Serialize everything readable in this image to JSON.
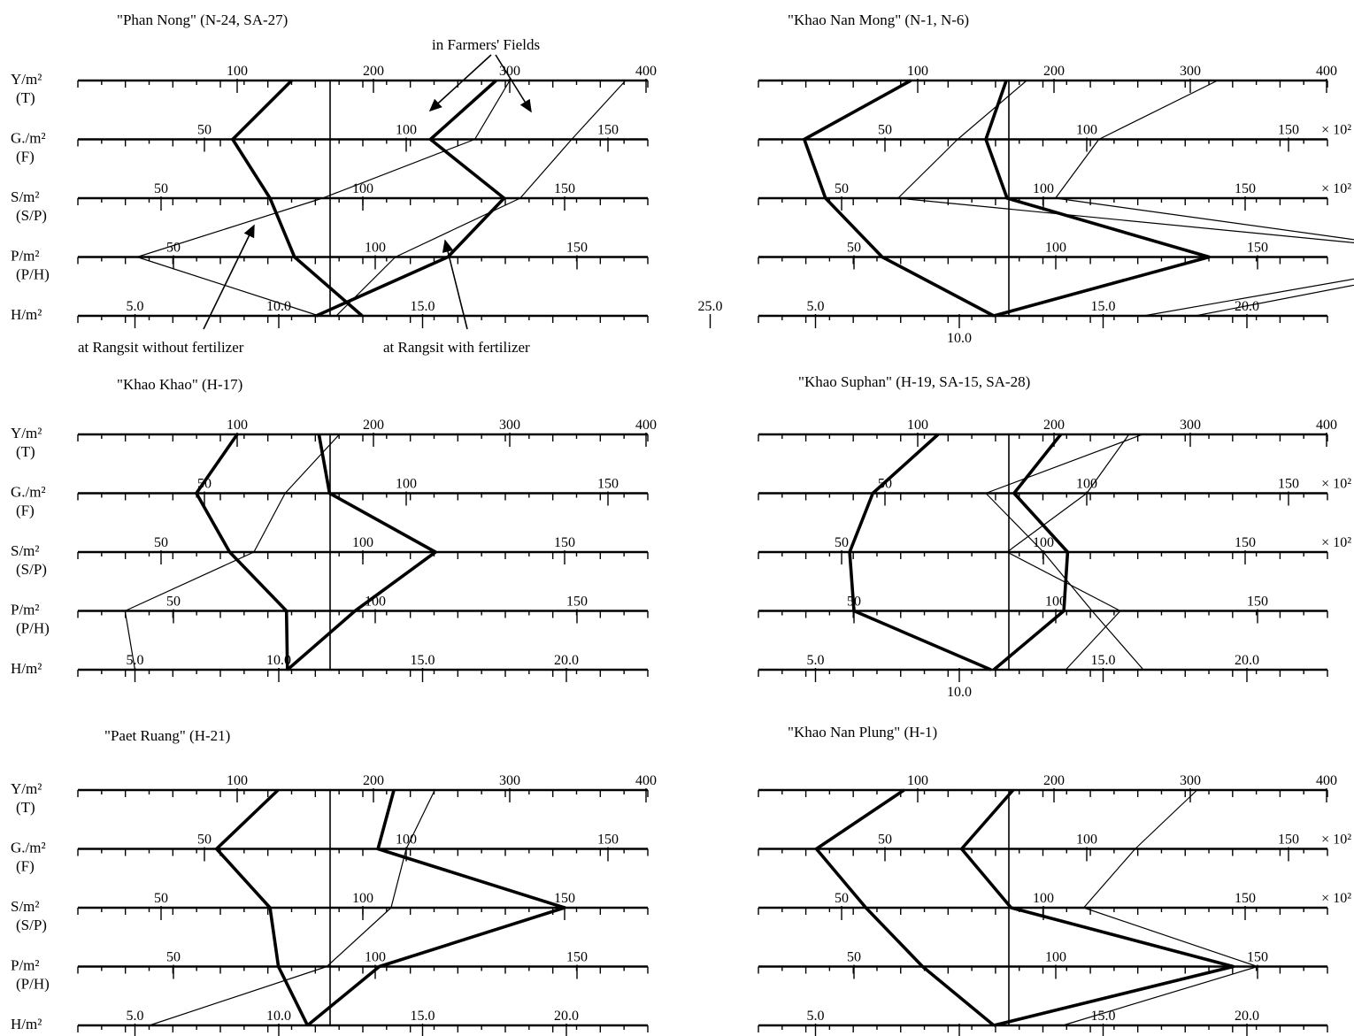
{
  "row_labels": [
    {
      "main": "Y/m²",
      "sub": "(T)"
    },
    {
      "main": "G./m²",
      "sub": "(F)"
    },
    {
      "main": "S/m²",
      "sub": "(S/P)"
    },
    {
      "main": "P/m²",
      "sub": "(P/H)"
    },
    {
      "main": "H/m²",
      "sub": ""
    }
  ],
  "multiplier_labels": {
    "G": "× 10²",
    "S": "× 10²"
  },
  "annotations": {
    "farmers": "in Farmers' Fields",
    "without": "at Rangsit without  fertilizer",
    "with": "at Rangsit with fertilizer"
  },
  "chart_data": [
    {
      "type": "line",
      "title": "\"Phan Nong\" (N-24, SA-27)",
      "scales": {
        "Y": {
          "ticks": [
            100,
            200,
            300,
            400
          ]
        },
        "G": {
          "ticks": [
            50,
            100,
            150
          ]
        },
        "S": {
          "ticks": [
            50,
            100,
            150
          ]
        },
        "P": {
          "ticks": [
            50,
            100,
            150
          ]
        },
        "H": {
          "ticks": [
            "5.0",
            "10.0",
            "15.0",
            "25.0"
          ]
        }
      },
      "series": [
        {
          "style": "thick",
          "values": {
            "Y": 140,
            "G": 57,
            "S": 77,
            "P": 80,
            "H": 12.9
          }
        },
        {
          "style": "thick",
          "values": {
            "Y": 290,
            "G": 106,
            "S": 135,
            "P": 118,
            "H": 11.3
          }
        },
        {
          "style": "thin",
          "values": {
            "Y": 300,
            "G": 117,
            "S": 90,
            "P": 41,
            "H": 11.4
          }
        },
        {
          "style": "thin",
          "values": {
            "Y": 385,
            "G": 141,
            "S": 139,
            "P": 105,
            "H": 12.0
          }
        }
      ]
    },
    {
      "type": "line",
      "title": "\"Khao Nan Mong\"  (N-1, N-6)",
      "scales": {
        "Y": {
          "ticks": [
            100,
            200,
            300,
            400
          ]
        },
        "G": {
          "ticks": [
            50,
            100,
            150
          ]
        },
        "S": {
          "ticks": [
            50,
            100,
            150
          ]
        },
        "P": {
          "ticks": [
            50,
            100,
            150
          ]
        },
        "H": {
          "ticks": [
            "5.0",
            "10.0",
            "15.0",
            "20.0"
          ]
        }
      },
      "series": [
        {
          "style": "thick",
          "values": {
            "Y": 95,
            "G": 30,
            "S": 46,
            "P": 57,
            "H": 11.2
          }
        },
        {
          "style": "thick",
          "values": {
            "Y": 165,
            "G": 75,
            "S": 91,
            "P": 138,
            "H": 11.2
          }
        },
        {
          "style": "thin",
          "values": {
            "Y": 180,
            "G": 68,
            "S": 64,
            "P": 210,
            "H": 18.2
          }
        },
        {
          "style": "thin",
          "values": {
            "Y": 320,
            "G": 103,
            "S": 103,
            "P": 205,
            "H": 16.4
          }
        }
      ]
    },
    {
      "type": "line",
      "title": "\"Khao Khao\"    (H-17)",
      "scales": {
        "Y": {
          "ticks": [
            100,
            200,
            300,
            400
          ]
        },
        "G": {
          "ticks": [
            50,
            100,
            150
          ]
        },
        "S": {
          "ticks": [
            50,
            100,
            150
          ]
        },
        "P": {
          "ticks": [
            50,
            100,
            150
          ]
        },
        "H": {
          "ticks": [
            "5.0",
            "10.0",
            "15.0",
            "20.0"
          ]
        }
      },
      "series": [
        {
          "style": "thick",
          "values": {
            "Y": 100,
            "G": 48,
            "S": 67,
            "P": 78,
            "H": 10.3
          }
        },
        {
          "style": "thick",
          "values": {
            "Y": 160,
            "G": 81,
            "S": 118,
            "P": 95,
            "H": 10.3
          }
        },
        {
          "style": "thin",
          "values": {
            "Y": 175,
            "G": 70,
            "S": 73,
            "P": 38,
            "H": 5.0
          }
        }
      ]
    },
    {
      "type": "line",
      "title": "\"Khao Suphan\" (H-19, SA-15, SA-28)",
      "scales": {
        "Y": {
          "ticks": [
            100,
            200,
            300,
            400
          ]
        },
        "G": {
          "ticks": [
            50,
            100,
            150
          ]
        },
        "S": {
          "ticks": [
            50,
            100,
            150
          ]
        },
        "P": {
          "ticks": [
            50,
            100,
            150
          ]
        },
        "H": {
          "ticks": [
            "5.0",
            "10.0",
            "15.0",
            "20.0"
          ]
        }
      },
      "series": [
        {
          "style": "thick",
          "values": {
            "Y": 115,
            "G": 47,
            "S": 52,
            "P": 50,
            "H": 11.1
          }
        },
        {
          "style": "thick",
          "values": {
            "Y": 205,
            "G": 82,
            "S": 106,
            "P": 102,
            "H": 11.2
          }
        },
        {
          "style": "thin",
          "values": {
            "Y": 265,
            "G": 75,
            "S": 100,
            "P": 109,
            "H": 16.4
          }
        },
        {
          "style": "thin",
          "values": {
            "Y": 255,
            "G": 100,
            "S": 91,
            "P": 116,
            "H": 13.7
          }
        }
      ]
    },
    {
      "type": "line",
      "title": "\"Paet Ruang\" (H-21)",
      "scales": {
        "Y": {
          "ticks": [
            100,
            200,
            300,
            400
          ]
        },
        "G": {
          "ticks": [
            50,
            100,
            150
          ]
        },
        "S": {
          "ticks": [
            50,
            100,
            150
          ]
        },
        "P": {
          "ticks": [
            50,
            100,
            150
          ]
        },
        "H": {
          "ticks": [
            "5.0",
            "10.0",
            "15.0",
            "20.0"
          ]
        }
      },
      "series": [
        {
          "style": "thick",
          "values": {
            "Y": 130,
            "G": 53,
            "S": 77,
            "P": 76,
            "H": 11.0
          }
        },
        {
          "style": "thick",
          "values": {
            "Y": 215,
            "G": 93,
            "S": 150,
            "P": 101,
            "H": 11.0
          }
        },
        {
          "style": "thin",
          "values": {
            "Y": 245,
            "G": 100,
            "S": 107,
            "P": 88,
            "H": 5.5
          }
        }
      ]
    },
    {
      "type": "line",
      "title": "\"Khao Nan Plung\" (H-1)",
      "scales": {
        "Y": {
          "ticks": [
            100,
            200,
            300,
            400
          ]
        },
        "G": {
          "ticks": [
            50,
            100,
            150
          ]
        },
        "S": {
          "ticks": [
            50,
            100,
            150
          ]
        },
        "P": {
          "ticks": [
            50,
            100,
            150
          ]
        },
        "H": {
          "ticks": [
            "5.0",
            "10.0",
            "15.0",
            "20.0"
          ]
        }
      },
      "series": [
        {
          "style": "thick",
          "values": {
            "Y": 90,
            "G": 33,
            "S": 56,
            "P": 67,
            "H": 11.2
          }
        },
        {
          "style": "thick",
          "values": {
            "Y": 170,
            "G": 69,
            "S": 92,
            "P": 144,
            "H": 11.2
          }
        },
        {
          "style": "thin",
          "values": {
            "Y": 305,
            "G": 112,
            "S": 110,
            "P": 150,
            "H": 13.6
          }
        }
      ]
    }
  ]
}
